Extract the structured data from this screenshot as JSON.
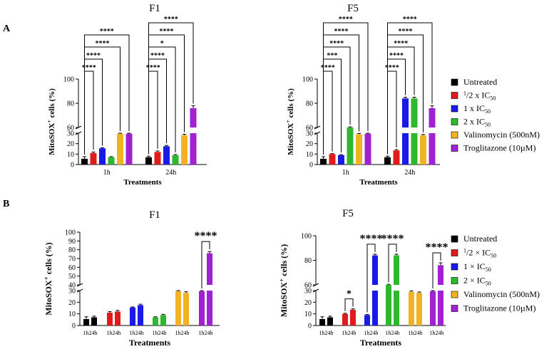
{
  "chart_data": {
    "panel_labels": [
      "A",
      "B"
    ],
    "legend": {
      "entries": [
        {
          "key": "untreated",
          "label": "Untreated",
          "color": "#000000"
        },
        {
          "key": "half",
          "label": "1/2 x IC50",
          "color": "#e11b1b"
        },
        {
          "key": "one",
          "label": "1 x IC50",
          "color": "#1a1ae6"
        },
        {
          "key": "two",
          "label": "2 x IC50",
          "color": "#2db82d"
        },
        {
          "key": "valino",
          "label": "Valinomycin (500nM)",
          "color": "#f0b323"
        },
        {
          "key": "troglit",
          "label": "Troglitazone (10µM)",
          "color": "#a021d0"
        }
      ]
    },
    "charts": [
      {
        "id": "A-F1",
        "type": "bar",
        "title": "F1",
        "ylabel": "MitoSOX+ cells (%)",
        "xlabel": "Treatments",
        "categories": [
          "1h",
          "24h"
        ],
        "series": [
          {
            "name": "Untreated",
            "values": [
              5.5,
              7
            ],
            "err": [
              2,
              1
            ]
          },
          {
            "name": "1/2 x IC50",
            "values": [
              11,
              12
            ],
            "err": [
              1,
              1
            ]
          },
          {
            "name": "1 x IC50",
            "values": [
              15.5,
              17.5
            ],
            "err": [
              0.5,
              0.8
            ]
          },
          {
            "name": "2 x IC50",
            "values": [
              7,
              9
            ],
            "err": [
              0.5,
              0.6
            ]
          },
          {
            "name": "Valinomycin (500nM)",
            "values": [
              29.5,
              28
            ],
            "err": [
              1,
              1
            ]
          },
          {
            "name": "Troglitazone (10µM)",
            "values": [
              29.5,
              76
            ],
            "err": [
              0.5,
              2
            ]
          }
        ],
        "yticks_lower": [
          0,
          10,
          20,
          30
        ],
        "yticks_upper": [
          60,
          80,
          100
        ],
        "break": [
          30,
          60
        ],
        "significance": [
          {
            "label": "****",
            "group": 0,
            "from": 0,
            "to": 1
          },
          {
            "label": "****",
            "group": 0,
            "from": 0,
            "to": 2
          },
          {
            "label": "****",
            "group": 0,
            "from": 0,
            "to": 4
          },
          {
            "label": "****",
            "group": 0,
            "from": 0,
            "to": 5
          },
          {
            "label": "****",
            "group": 1,
            "from": 0,
            "to": 1
          },
          {
            "label": "****",
            "group": 1,
            "from": 0,
            "to": 2
          },
          {
            "label": "*",
            "group": 1,
            "from": 0,
            "to": 3
          },
          {
            "label": "****",
            "group": 1,
            "from": 0,
            "to": 4
          },
          {
            "label": "****",
            "group": 1,
            "from": 0,
            "to": 5
          }
        ]
      },
      {
        "id": "A-F5",
        "type": "bar",
        "title": "F5",
        "ylabel": "MitoSOX+ cells (%)",
        "xlabel": "Treatments",
        "categories": [
          "1h",
          "24h"
        ],
        "series": [
          {
            "name": "Untreated",
            "values": [
              5.5,
              7
            ],
            "err": [
              2,
              1
            ]
          },
          {
            "name": "1/2 x IC50",
            "values": [
              10,
              13.5
            ],
            "err": [
              0.5,
              0.8
            ]
          },
          {
            "name": "1 x IC50",
            "values": [
              9,
              84
            ],
            "err": [
              0.5,
              1
            ]
          },
          {
            "name": "2 x IC50",
            "values": [
              60,
              84
            ],
            "err": [
              0.5,
              1
            ]
          },
          {
            "name": "Valinomycin (500nM)",
            "values": [
              29,
              28
            ],
            "err": [
              0.8,
              0.8
            ]
          },
          {
            "name": "Troglitazone (10µM)",
            "values": [
              29.5,
              76
            ],
            "err": [
              0.5,
              2
            ]
          }
        ],
        "yticks_lower": [
          0,
          10,
          20,
          30
        ],
        "yticks_upper": [
          60,
          80,
          100
        ],
        "break": [
          30,
          60
        ],
        "significance": [
          {
            "label": "****",
            "group": 0,
            "from": 0,
            "to": 1
          },
          {
            "label": "***",
            "group": 0,
            "from": 0,
            "to": 2
          },
          {
            "label": "****",
            "group": 0,
            "from": 0,
            "to": 3
          },
          {
            "label": "****",
            "group": 0,
            "from": 0,
            "to": 4
          },
          {
            "label": "****",
            "group": 0,
            "from": 0,
            "to": 5
          },
          {
            "label": "****",
            "group": 1,
            "from": 0,
            "to": 1
          },
          {
            "label": "****",
            "group": 1,
            "from": 0,
            "to": 2
          },
          {
            "label": "****",
            "group": 1,
            "from": 0,
            "to": 3
          },
          {
            "label": "****",
            "group": 1,
            "from": 0,
            "to": 4
          },
          {
            "label": "****",
            "group": 1,
            "from": 0,
            "to": 5
          }
        ]
      },
      {
        "id": "B-F1",
        "type": "bar",
        "title": "F1",
        "ylabel": "MitoSOX+ cells (%)",
        "xlabel": "Treatments",
        "pair_labels": [
          "1h",
          "24h"
        ],
        "pairs": [
          {
            "name": "Untreated",
            "values": [
              5.5,
              7
            ],
            "err": [
              2,
              1
            ]
          },
          {
            "name": "1/2 x IC50",
            "values": [
              11,
              12
            ],
            "err": [
              1,
              1
            ]
          },
          {
            "name": "1 x IC50",
            "values": [
              15.5,
              17.5
            ],
            "err": [
              0.5,
              0.8
            ]
          },
          {
            "name": "2 x IC50",
            "values": [
              7,
              9
            ],
            "err": [
              0.5,
              0.6
            ]
          },
          {
            "name": "Valinomycin (500nM)",
            "values": [
              29.5,
              28
            ],
            "err": [
              1,
              1
            ]
          },
          {
            "name": "Troglitazone (10µM)",
            "values": [
              29.5,
              76
            ],
            "err": [
              0.5,
              2
            ]
          }
        ],
        "yticks_lower": [
          0,
          10,
          20,
          30
        ],
        "yticks_upper": [
          40,
          50,
          60,
          70,
          80,
          90,
          100
        ],
        "break": [
          30,
          40
        ],
        "significance": [
          {
            "label": "****",
            "pair": 5
          }
        ]
      },
      {
        "id": "B-F5",
        "type": "bar",
        "title": "F5",
        "ylabel": "MitoSOX+ cells (%)",
        "xlabel": "Treatments",
        "pair_labels": [
          "1h",
          "24h"
        ],
        "pairs": [
          {
            "name": "Untreated",
            "values": [
              5.5,
              7
            ],
            "err": [
              2,
              1
            ]
          },
          {
            "name": "1/2 x IC50",
            "values": [
              10,
              13.5
            ],
            "err": [
              0.5,
              0.8
            ]
          },
          {
            "name": "1 x IC50",
            "values": [
              9,
              84
            ],
            "err": [
              0.5,
              1
            ]
          },
          {
            "name": "2 x IC50",
            "values": [
              60,
              84
            ],
            "err": [
              0.5,
              1
            ]
          },
          {
            "name": "Valinomycin (500nM)",
            "values": [
              29,
              28
            ],
            "err": [
              0.8,
              0.8
            ]
          },
          {
            "name": "Troglitazone (10µM)",
            "values": [
              29.5,
              76
            ],
            "err": [
              0.5,
              2
            ]
          }
        ],
        "yticks_lower": [
          0,
          10,
          20,
          30
        ],
        "yticks_upper": [
          60,
          80,
          100
        ],
        "break": [
          30,
          60
        ],
        "significance": [
          {
            "label": "*",
            "pair": 1
          },
          {
            "label": "****",
            "pair": 2
          },
          {
            "label": "****",
            "pair": 3
          },
          {
            "label": "****",
            "pair": 5
          }
        ]
      }
    ]
  }
}
